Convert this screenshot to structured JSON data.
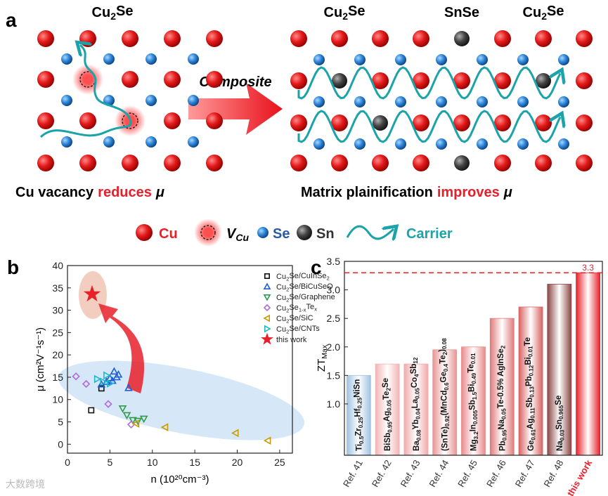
{
  "panel_a": {
    "letter": "a",
    "left_title": "Cu2Se",
    "right_titles": [
      "Cu2Se",
      "SnSe",
      "Cu2Se"
    ],
    "arrow_label": "Composite",
    "left_caption": [
      "Cu vacancy",
      "reduces",
      "μ"
    ],
    "right_caption": [
      "Matrix plainification",
      "improves",
      "μ"
    ],
    "legend": [
      "Cu",
      "VCu",
      "Se",
      "Sn",
      "Carrier"
    ]
  },
  "chart_data": [
    {
      "type": "scatter",
      "letter": "b",
      "x_label": "n (10²⁰cm⁻³)",
      "y_label": "μ (cm²V⁻¹s⁻¹)",
      "xlim": [
        0,
        26.5
      ],
      "xticks": [
        0,
        5,
        10,
        15,
        20,
        25
      ],
      "ylim": [
        -2,
        40
      ],
      "yticks": [
        0,
        5,
        10,
        15,
        20,
        25,
        30,
        35,
        40
      ],
      "legend": "upper right",
      "series": [
        {
          "name": "Cu2Se/CuInSe2",
          "color": "#111111",
          "marker": "square",
          "x": [
            2.8,
            4.0
          ],
          "values": [
            7.6,
            12.5
          ]
        },
        {
          "name": "Cu2Se/BiCuSeO",
          "color": "#1f5fd6",
          "marker": "triangle-up",
          "x": [
            4.0,
            4.6,
            5.0,
            5.3,
            5.5,
            5.8,
            6.0,
            7.2
          ],
          "values": [
            13.4,
            14.0,
            14.8,
            14.2,
            16.3,
            15.0,
            15.6,
            12.6
          ]
        },
        {
          "name": "Cu2Se/Graphene",
          "color": "#2e9b4a",
          "marker": "triangle-down",
          "x": [
            6.5,
            7.0,
            7.7,
            8.3,
            9.0
          ],
          "values": [
            8.0,
            6.5,
            5.4,
            5.2,
            5.7
          ]
        },
        {
          "name": "Cu2Se1-xTex",
          "color": "#b36ad6",
          "marker": "diamond",
          "x": [
            1.0,
            2.2,
            4.8,
            7.5
          ],
          "values": [
            15.2,
            13.5,
            9.0,
            4.4
          ]
        },
        {
          "name": "Cu2Se/SiC",
          "color": "#c89a00",
          "marker": "triangle-left",
          "x": [
            8.1,
            11.5,
            19.8,
            23.6
          ],
          "values": [
            4.6,
            3.8,
            2.5,
            0.8
          ]
        },
        {
          "name": "Cu2Se/CNTs",
          "color": "#1cb9c9",
          "marker": "triangle-right",
          "x": [
            3.5,
            4.2,
            4.6,
            5.0
          ],
          "values": [
            14.6,
            14.0,
            15.4,
            13.6
          ]
        },
        {
          "name": "this work",
          "color": "#e8202a",
          "marker": "star",
          "x": [
            2.9
          ],
          "values": [
            33.6
          ]
        }
      ]
    },
    {
      "type": "bar",
      "letter": "c",
      "y_label": "ZTMax",
      "categories": [
        "Ref. 41",
        "Ref. 42",
        "Ref. 43",
        "Ref. 44",
        "Ref. 45",
        "Ref. 46",
        "Ref. 47",
        "Ref. 48",
        "this work"
      ],
      "bar_labels": [
        "Ti0.5Zr0.25Hf0.25NiSn",
        "BiSb0.95Ag0.05Te2Se",
        "Ba0.08Yb0.04La0.05Co4Sb12",
        "(SnTe)0.92(MnCd0.6Ge0.4Te2)0.08",
        "Mg3.2In0.005Sb1.5Bi0.49Te0.01",
        "Pb0.95Na0.05Te-0.5% AgInSe2",
        "Ge0.61Ag0.11Sb0.13Pb0.12Bi0.01Te",
        "Na0.03Sn0.965Se",
        null
      ],
      "values": [
        1.5,
        1.7,
        1.7,
        1.95,
        2.0,
        2.5,
        2.7,
        3.1,
        3.3
      ],
      "colors": [
        "#9fc3e0",
        "#f2b4b4",
        "#f0aaaa",
        "#e99494",
        "#e88a8a",
        "#e07a7a",
        "#d96262",
        "#8a4646",
        "#e8202a"
      ],
      "category_label_colors": [
        "#333333",
        "#333333",
        "#333333",
        "#333333",
        "#333333",
        "#333333",
        "#333333",
        "#333333",
        "#e8202a"
      ],
      "reference_line": 3.3,
      "ylim": [
        0.1,
        3.5
      ],
      "yticks": [
        {
          "value": 1,
          "label": "1.0"
        },
        1.5,
        {
          "value": 2,
          "label": "2.0"
        },
        2.5,
        {
          "value": 3,
          "label": "3.0"
        },
        3.5
      ]
    }
  ],
  "watermark": "大数跨境"
}
